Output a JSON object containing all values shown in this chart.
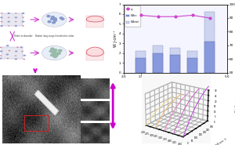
{
  "bar_chart": {
    "x": [
      2.5,
      3.0,
      3.5,
      4.0,
      4.5
    ],
    "W_rec": [
      1.5,
      2.0,
      1.8,
      1.5,
      3.2
    ],
    "W_total": [
      2.2,
      2.8,
      2.5,
      2.2,
      6.2
    ],
    "eta": [
      92,
      91,
      91,
      92,
      90
    ],
    "bar_color_rec": "#8899dd",
    "bar_color_loss": "#ccd4f0",
    "line_color": "#cc44cc",
    "xlabel": "Content (x)",
    "ylabel_left": "W J·cm⁻³",
    "ylabel_right": "η %",
    "ylim_left": [
      0,
      7
    ],
    "ylim_right": [
      50,
      100
    ],
    "xlim": [
      2.0,
      5.0
    ],
    "xticks": [
      2.0,
      2.5,
      3.0,
      3.5,
      4.0,
      4.5,
      5.0
    ],
    "yticks_left": [
      0,
      1,
      2,
      3,
      4,
      5,
      6,
      7
    ],
    "yticks_right": [
      50,
      60,
      70,
      80,
      90,
      100
    ]
  },
  "3d_chart": {
    "x_label": "Content (x)",
    "y_label": "Electric field (kV·cm⁻¹)",
    "z_label": "P (μC·cm⁻²)",
    "x_values": [
      2.5,
      3.0,
      3.5,
      4.0,
      4.5
    ],
    "colors": [
      "#f5e090",
      "#f0b870",
      "#e080c0",
      "#d060d0",
      "#c040e0"
    ],
    "E_max": 300,
    "P_max": 30
  },
  "left_top": {
    "arrow_color": "#cc44cc",
    "crystal_color_a": "#9999cc",
    "crystal_color_b": "#cc88aa",
    "crystal_edge": "#ffffff",
    "circle_bg": "#e8eef8",
    "circle_dot_ordered": "#8899cc",
    "circle_dot_disordered": "#99bbaa",
    "hysteresis_bg_slim": "#fce8ea",
    "hysteresis_line_slim": "#e06070",
    "hysteresis_bg_fat": "#fce8ea",
    "hysteresis_line_fat": "#e06070",
    "label_color": "#333333",
    "text_order": "Order to disorder",
    "text_broken": "Broken long-range ferroelectric order"
  },
  "microscopy": {
    "main_bg": "#606060",
    "needle_color": "#e8e8e0",
    "rect_color": "#cc3333",
    "inset_border": "#aaaaaa"
  },
  "arrow_magenta": "#cc00cc",
  "figure_bg": "#ffffff"
}
